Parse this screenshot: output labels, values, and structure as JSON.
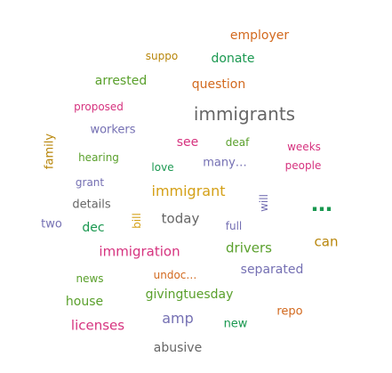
{
  "palette": {
    "orange": "#d2691e",
    "green": "#1a9850",
    "lime": "#5aa02c",
    "magenta": "#d6337f",
    "purple": "#7570b3",
    "gray": "#666666",
    "gold": "#d4a017",
    "brown": "#b8860b"
  },
  "words": [
    {
      "text": "employer",
      "color": "#d2691e"
    },
    {
      "text": "suppo",
      "color": "#b8860b"
    },
    {
      "text": "donate",
      "color": "#1a9850"
    },
    {
      "text": "arrested",
      "color": "#5aa02c"
    },
    {
      "text": "question",
      "color": "#d2691e"
    },
    {
      "text": "proposed",
      "color": "#d6337f"
    },
    {
      "text": "immigrants",
      "color": "#666666"
    },
    {
      "text": "workers",
      "color": "#7570b3"
    },
    {
      "text": "family",
      "color": "#b8860b"
    },
    {
      "text": "see",
      "color": "#d6337f"
    },
    {
      "text": "deaf",
      "color": "#5aa02c"
    },
    {
      "text": "weeks",
      "color": "#d6337f"
    },
    {
      "text": "hearing",
      "color": "#5aa02c"
    },
    {
      "text": "love",
      "color": "#1a9850"
    },
    {
      "text": "many…",
      "color": "#7570b3"
    },
    {
      "text": "people",
      "color": "#d6337f"
    },
    {
      "text": "grant",
      "color": "#7570b3"
    },
    {
      "text": "immigrant",
      "color": "#d4a017"
    },
    {
      "text": "will",
      "color": "#7570b3"
    },
    {
      "text": "…",
      "color": "#1a9850"
    },
    {
      "text": "details",
      "color": "#666666"
    },
    {
      "text": "bill",
      "color": "#d4a017"
    },
    {
      "text": "two",
      "color": "#7570b3"
    },
    {
      "text": "dec",
      "color": "#1a9850"
    },
    {
      "text": "today",
      "color": "#666666"
    },
    {
      "text": "full",
      "color": "#7570b3"
    },
    {
      "text": "immigration",
      "color": "#d6337f"
    },
    {
      "text": "drivers",
      "color": "#5aa02c"
    },
    {
      "text": "can",
      "color": "#b8860b"
    },
    {
      "text": "separated",
      "color": "#7570b3"
    },
    {
      "text": "news",
      "color": "#5aa02c"
    },
    {
      "text": "undoc…",
      "color": "#d2691e"
    },
    {
      "text": "house",
      "color": "#5aa02c"
    },
    {
      "text": "givingtuesday",
      "color": "#5aa02c"
    },
    {
      "text": "repo",
      "color": "#d2691e"
    },
    {
      "text": "licenses",
      "color": "#d6337f"
    },
    {
      "text": "amp",
      "color": "#7570b3"
    },
    {
      "text": "new",
      "color": "#1a9850"
    },
    {
      "text": "abusive",
      "color": "#666666"
    }
  ]
}
